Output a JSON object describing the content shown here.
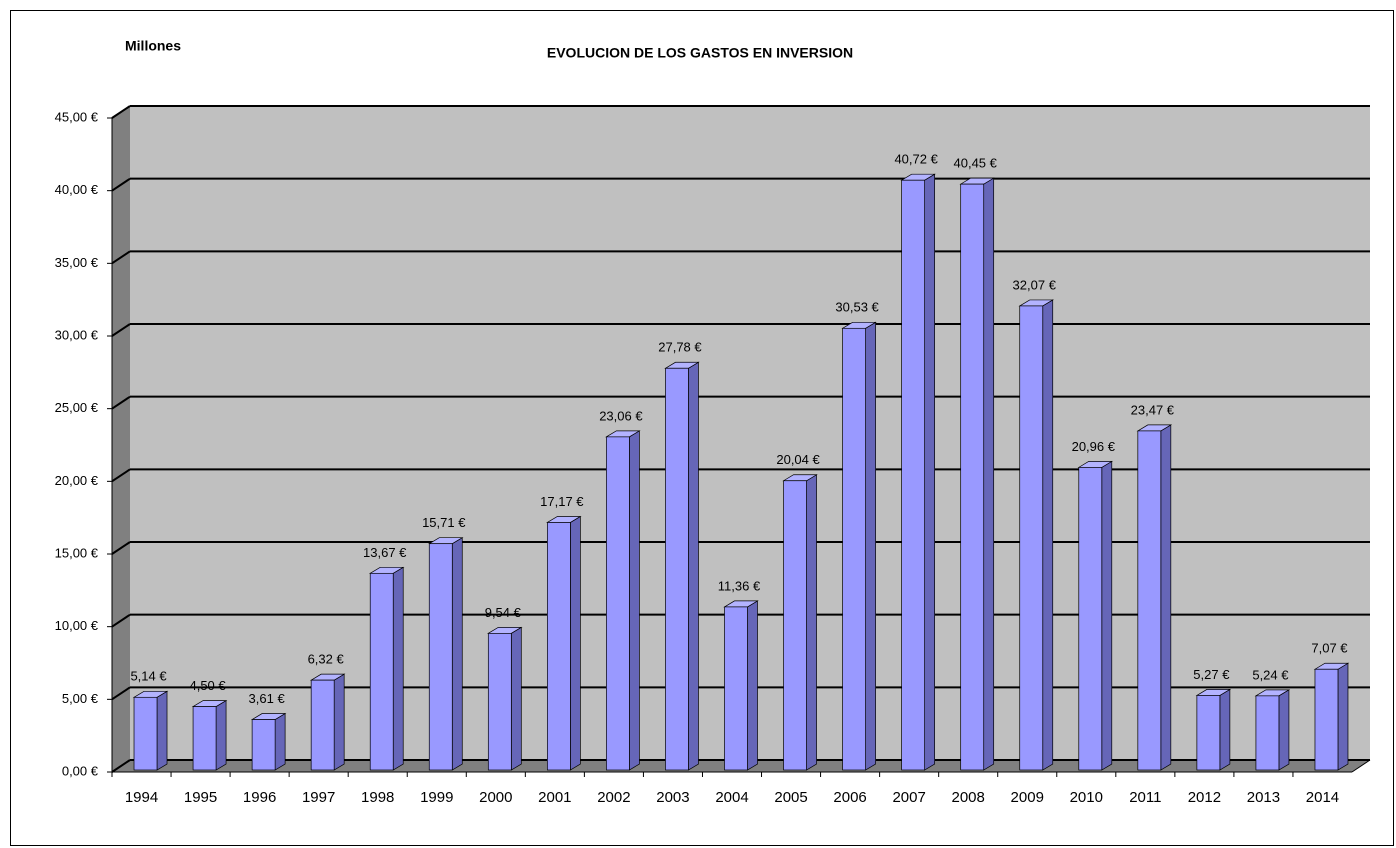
{
  "chart_data": {
    "type": "bar3d",
    "title": "EVOLUCION DE LOS GASTOS EN INVERSION",
    "y_axis_label": "Millones",
    "categories": [
      "1994",
      "1995",
      "1996",
      "1997",
      "1998",
      "1999",
      "2000",
      "2001",
      "2002",
      "2003",
      "2004",
      "2005",
      "2006",
      "2007",
      "2008",
      "2009",
      "2010",
      "2011",
      "2012",
      "2013",
      "2014"
    ],
    "values": [
      5.14,
      4.5,
      3.61,
      6.32,
      13.67,
      15.71,
      9.54,
      17.17,
      23.06,
      27.78,
      11.36,
      20.04,
      30.53,
      40.72,
      40.45,
      32.07,
      20.96,
      23.47,
      5.27,
      5.24,
      7.07
    ],
    "value_labels": [
      "5,14 €",
      "4,50 €",
      "3,61 €",
      "6,32 €",
      "13,67 €",
      "15,71 €",
      "9,54 €",
      "17,17 €",
      "23,06 €",
      "27,78 €",
      "11,36 €",
      "20,04 €",
      "30,53 €",
      "40,72 €",
      "40,45 €",
      "32,07 €",
      "20,96 €",
      "23,47 €",
      "5,27 €",
      "5,24 €",
      "7,07 €"
    ],
    "color": "#9999ff",
    "ylim": [
      0,
      45
    ],
    "yticks": [
      {
        "value": 0,
        "label": "0,00 €"
      },
      {
        "value": 5,
        "label": "5,00 €"
      },
      {
        "value": 10,
        "label": "10,00 €"
      },
      {
        "value": 15,
        "label": "15,00 €"
      },
      {
        "value": 20,
        "label": "20,00 €"
      },
      {
        "value": 25,
        "label": "25,00 €"
      },
      {
        "value": 30,
        "label": "30,00 €"
      },
      {
        "value": 35,
        "label": "35,00 €"
      },
      {
        "value": 40,
        "label": "40,00 €"
      },
      {
        "value": 45,
        "label": "45,00 €"
      }
    ],
    "grid": true
  }
}
